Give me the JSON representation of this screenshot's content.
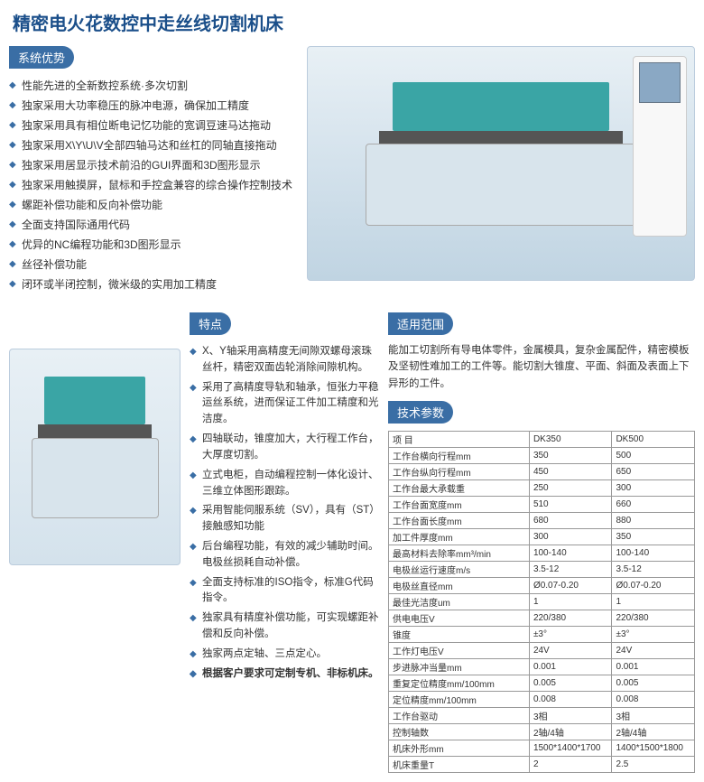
{
  "title": "精密电火花数控中走丝线切割机床",
  "advantages": {
    "header": "系统优势",
    "items": [
      "性能先进的全新数控系统·多次切割",
      "独家采用大功率稳压的脉冲电源，确保加工精度",
      "独家采用具有相位断电记忆功能的宽调豆速马达拖动",
      "独家采用X\\Y\\U\\V全部四轴马达和丝杠的同轴直接拖动",
      "独家采用居显示技术前沿的GUI界面和3D图形显示",
      "独家采用触摸屏，鼠标和手控盒兼容的综合操作控制技术",
      "螺距补偿功能和反向补偿功能",
      "全面支持国际通用代码",
      "优异的NC编程功能和3D图形显示",
      "丝径补偿功能",
      "闭环或半闭控制，微米级的实用加工精度"
    ]
  },
  "features": {
    "header": "特点",
    "items": [
      "X、Y轴采用高精度无间隙双螺母滚珠丝杆，精密双面齿轮消除间隙机构。",
      "采用了高精度导轨和轴承，恒张力平稳运丝系统，进而保证工件加工精度和光洁度。",
      "四轴联动，锥度加大，大行程工作台，大厚度切割。",
      "立式电柜，自动编程控制一体化设计、三维立体图形跟踪。",
      "采用智能伺服系统（SV），具有（ST）接触感知功能",
      "后台编程功能，有效的减少辅助时间。电极丝损耗自动补偿。",
      "全面支持标准的ISO指令，标准G代码指令。",
      "独家具有精度补偿功能，可实现螺距补偿和反向补偿。",
      "独家两点定轴、三点定心。",
      "根据客户要求可定制专机、非标机床。"
    ],
    "bold_indices": [
      9
    ]
  },
  "scope": {
    "header": "适用范围",
    "text": "能加工切割所有导电体零件，金属模具，复杂金属配件，精密模板及坚韧性难加工的工件等。能切割大锥度、平面、斜面及表面上下异形的工件。"
  },
  "specs": {
    "header": "技术参数",
    "columns": [
      "项 目",
      "DK350",
      "DK500"
    ],
    "rows": [
      [
        "工作台横向行程mm",
        "350",
        "500"
      ],
      [
        "工作台纵向行程mm",
        "450",
        "650"
      ],
      [
        "工作台最大承载重",
        "250",
        "300"
      ],
      [
        "工作台面宽度mm",
        "510",
        "660"
      ],
      [
        "工作台面长度mm",
        "680",
        "880"
      ],
      [
        "加工件厚度mm",
        "300",
        "350"
      ],
      [
        "最高材料去除率mm³/min",
        "100-140",
        "100-140"
      ],
      [
        "电极丝运行速度m/s",
        "3.5-12",
        "3.5-12"
      ],
      [
        "电极丝直径mm",
        "Ø0.07-0.20",
        "Ø0.07-0.20"
      ],
      [
        "最佳光洁度um",
        "1",
        "1"
      ],
      [
        "供电电压V",
        "220/380",
        "220/380"
      ],
      [
        "锥度",
        "±3°",
        "±3°"
      ],
      [
        "工作灯电压V",
        "24V",
        "24V"
      ],
      [
        "步进脉冲当量mm",
        "0.001",
        "0.001"
      ],
      [
        "重复定位精度mm/100mm",
        "0.005",
        "0.005"
      ],
      [
        "定位精度mm/100mm",
        "0.008",
        "0.008"
      ],
      [
        "工作台驱动",
        "3相",
        "3相"
      ],
      [
        "控制轴数",
        "2轴/4轴",
        "2轴/4轴"
      ],
      [
        "机床外形mm",
        "1500*1400*1700",
        "1400*1500*1800"
      ],
      [
        "机床重量T",
        "2",
        "2.5"
      ]
    ]
  },
  "colors": {
    "primary": "#1b4f8a",
    "header_bg": "#3a6ea5",
    "bullet": "#3a6ea5",
    "machine_accent": "#3aa5a5"
  }
}
